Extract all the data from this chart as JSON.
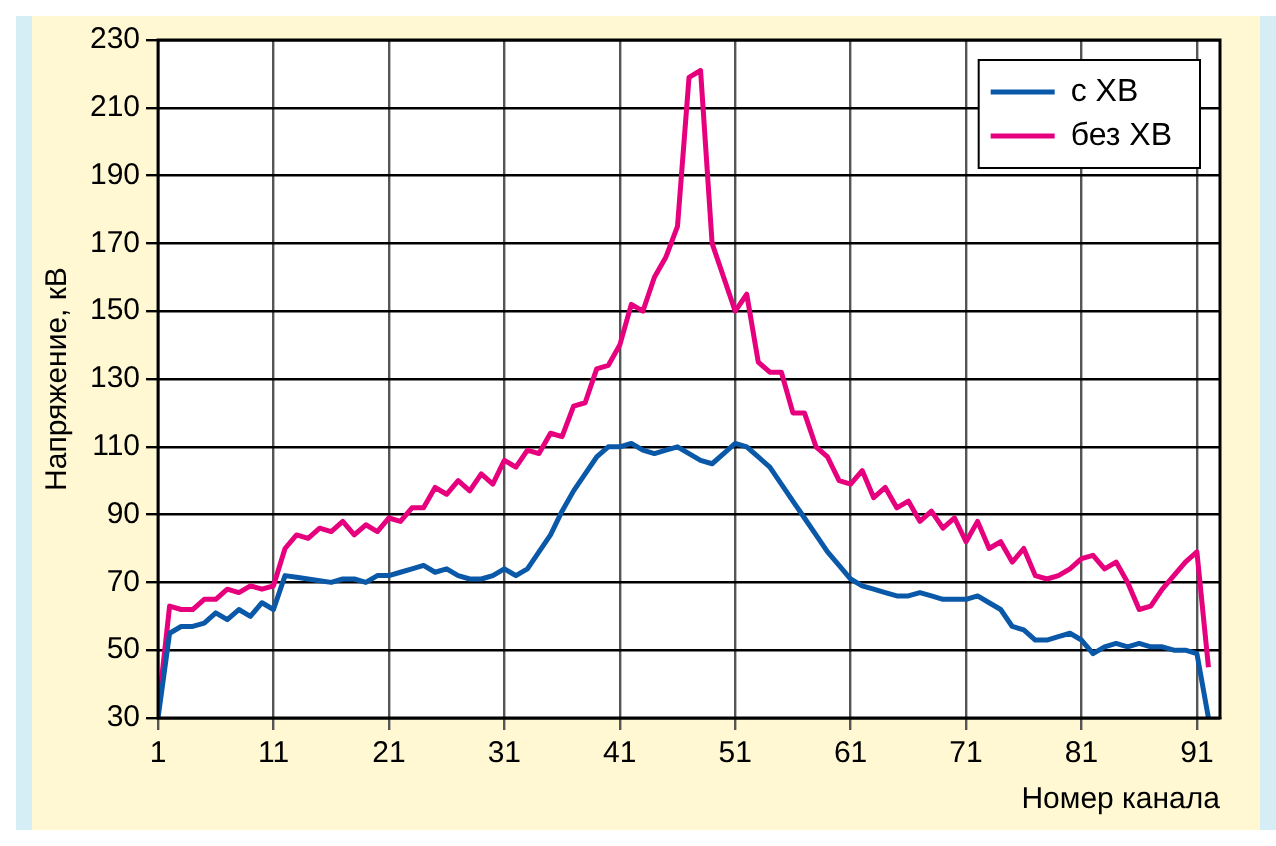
{
  "chart_data": {
    "type": "line",
    "xlabel": "Номер канала",
    "ylabel": "Напряжение, кВ",
    "x": [
      1,
      2,
      3,
      4,
      5,
      6,
      7,
      8,
      9,
      10,
      11,
      12,
      13,
      14,
      15,
      16,
      17,
      18,
      19,
      20,
      21,
      22,
      23,
      24,
      25,
      26,
      27,
      28,
      29,
      30,
      31,
      32,
      33,
      34,
      35,
      36,
      37,
      38,
      39,
      40,
      41,
      42,
      43,
      44,
      45,
      46,
      47,
      48,
      49,
      50,
      51,
      52,
      53,
      54,
      55,
      56,
      57,
      58,
      59,
      60,
      61,
      62,
      63,
      64,
      65,
      66,
      67,
      68,
      69,
      70,
      71,
      72,
      73,
      74,
      75,
      76,
      77,
      78,
      79,
      80,
      81,
      82,
      83,
      84,
      85,
      86,
      87,
      88,
      89,
      90,
      91,
      92
    ],
    "series": [
      {
        "name": "с ХВ",
        "color": "#0a58a8",
        "values": [
          30,
          55,
          57,
          57,
          58,
          61,
          59,
          62,
          60,
          64,
          62,
          72,
          71.5,
          71,
          70.5,
          70,
          71,
          71,
          70,
          72,
          72,
          73,
          74,
          75,
          73,
          74,
          72,
          71,
          71,
          72,
          74,
          72,
          74,
          79,
          84,
          91,
          97,
          102,
          107,
          110,
          110,
          111,
          109,
          108,
          109,
          110,
          108,
          106,
          105,
          108,
          111,
          110,
          107,
          104,
          99,
          94,
          89,
          84,
          79,
          75,
          71,
          69,
          68,
          67,
          66,
          66,
          67,
          66,
          65,
          65,
          65,
          66,
          64,
          62,
          57,
          56,
          53,
          53,
          54,
          55,
          53,
          49,
          51,
          52,
          51,
          52,
          51,
          51,
          50,
          50,
          49,
          30
        ]
      },
      {
        "name": "без ХВ",
        "color": "#e6007e",
        "values": [
          32,
          63,
          62,
          62,
          65,
          65,
          68,
          67,
          69,
          68,
          69,
          80,
          84,
          83,
          86,
          85,
          88,
          84,
          87,
          85,
          89,
          88,
          92,
          92,
          98,
          96,
          100,
          97,
          102,
          99,
          106,
          104,
          109,
          108,
          114,
          113,
          122,
          123,
          133,
          134,
          140,
          152,
          150,
          160,
          166,
          175,
          219,
          221,
          170,
          160,
          150,
          155,
          135,
          132,
          132,
          120,
          120,
          110,
          107,
          100,
          99,
          103,
          95,
          98,
          92,
          94,
          88,
          91,
          86,
          89,
          82,
          88,
          80,
          82,
          76,
          80,
          72,
          71,
          72,
          74,
          77,
          78,
          74,
          76,
          70,
          62,
          63,
          68,
          72,
          76,
          79,
          45
        ]
      }
    ],
    "xlim": [
      1,
      93
    ],
    "xticks": [
      1,
      11,
      21,
      31,
      41,
      51,
      61,
      71,
      81,
      91
    ],
    "ylim": [
      30,
      230
    ],
    "yticks": [
      30,
      50,
      70,
      90,
      110,
      130,
      150,
      170,
      190,
      210,
      230
    ],
    "grid": true,
    "legend": "top right",
    "marker": "none",
    "line_style": "solid"
  }
}
